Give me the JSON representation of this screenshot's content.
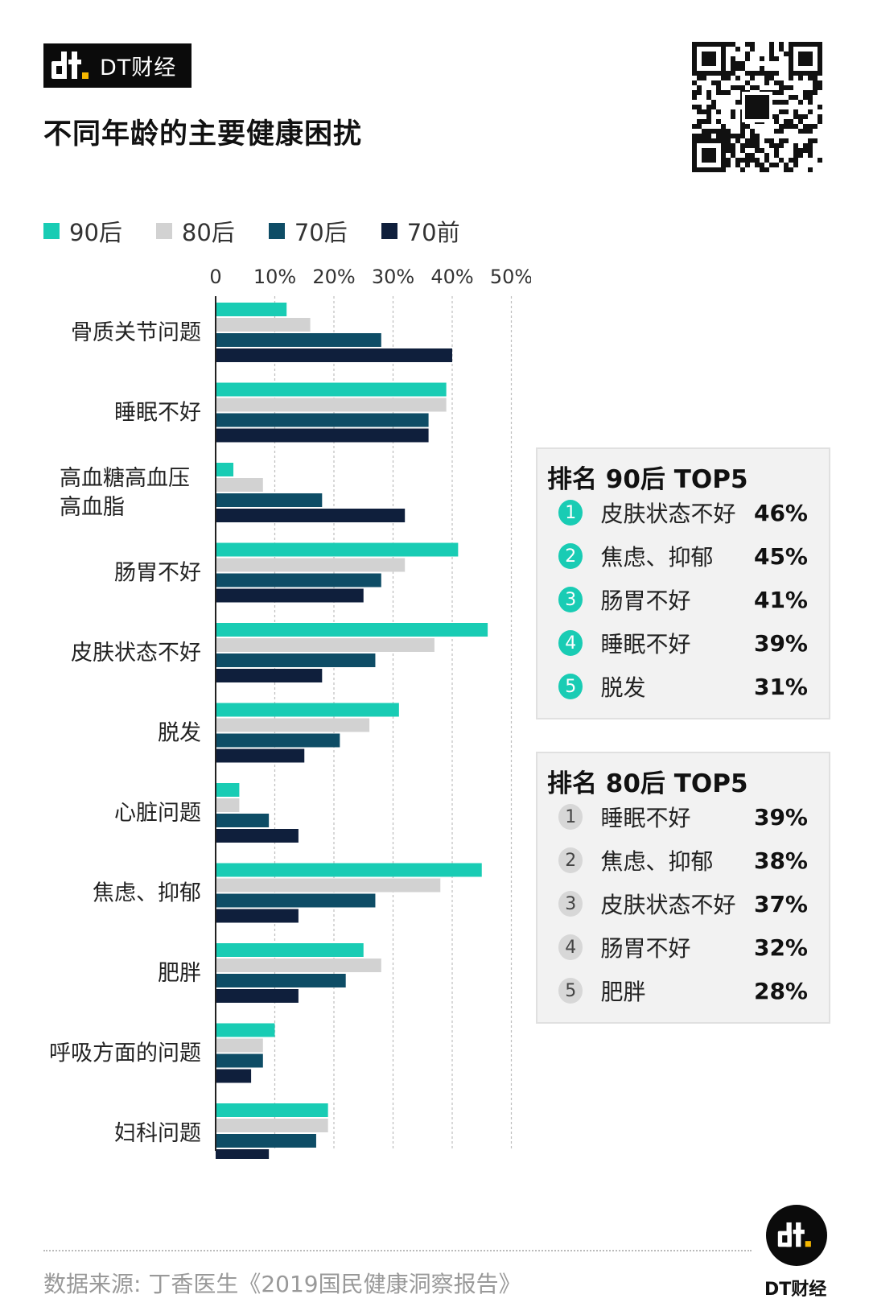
{
  "brand": {
    "name": "DT财经",
    "logo_mark": "dt-logo-icon"
  },
  "title": "不同年龄的主要健康困扰",
  "colors": {
    "90后": "#19ccb4",
    "80后": "#d2d2d2",
    "70后": "#0e4d66",
    "70前": "#0f1f3c",
    "grid": "#bdbdbd"
  },
  "legend": [
    {
      "label": "90后",
      "color": "#19ccb4"
    },
    {
      "label": "80后",
      "color": "#d2d2d2"
    },
    {
      "label": "70后",
      "color": "#0e4d66"
    },
    {
      "label": "70前",
      "color": "#0f1f3c"
    }
  ],
  "chart_data": {
    "type": "bar",
    "orientation": "horizontal",
    "categories": [
      "骨质关节问题",
      "睡眠不好",
      "高血糖高血压\n高血脂",
      "肠胃不好",
      "皮肤状态不好",
      "脱发",
      "心脏问题",
      "焦虑、抑郁",
      "肥胖",
      "呼吸方面的问题",
      "妇科问题"
    ],
    "series": [
      {
        "name": "90后",
        "values": [
          12,
          39,
          3,
          41,
          46,
          31,
          4,
          45,
          25,
          10,
          19
        ]
      },
      {
        "name": "80后",
        "values": [
          16,
          39,
          8,
          32,
          37,
          26,
          4,
          38,
          28,
          8,
          19
        ]
      },
      {
        "name": "70后",
        "values": [
          28,
          36,
          18,
          28,
          27,
          21,
          9,
          27,
          22,
          8,
          17
        ]
      },
      {
        "name": "70前",
        "values": [
          40,
          36,
          32,
          25,
          18,
          15,
          14,
          14,
          14,
          6,
          9
        ]
      }
    ],
    "x_ticks": [
      "0",
      "10%",
      "20%",
      "30%",
      "40%",
      "50%"
    ],
    "xlim": [
      0,
      50
    ],
    "grid": true,
    "legend_position": "top-left"
  },
  "ranking_90": {
    "title": "排名 90后 TOP5",
    "items": [
      {
        "rank": "1",
        "label": "皮肤状态不好",
        "pct": "46%"
      },
      {
        "rank": "2",
        "label": "焦虑、抑郁",
        "pct": "45%"
      },
      {
        "rank": "3",
        "label": "肠胃不好",
        "pct": "41%"
      },
      {
        "rank": "4",
        "label": "睡眠不好",
        "pct": "39%"
      },
      {
        "rank": "5",
        "label": "脱发",
        "pct": "31%"
      }
    ]
  },
  "ranking_80": {
    "title": "排名 80后 TOP5",
    "items": [
      {
        "rank": "1",
        "label": "睡眠不好",
        "pct": "39%"
      },
      {
        "rank": "2",
        "label": "焦虑、抑郁",
        "pct": "38%"
      },
      {
        "rank": "3",
        "label": "皮肤状态不好",
        "pct": "37%"
      },
      {
        "rank": "4",
        "label": "肠胃不好",
        "pct": "32%"
      },
      {
        "rank": "5",
        "label": "肥胖",
        "pct": "28%"
      }
    ]
  },
  "source": "数据来源: 丁香医生《2019国民健康洞察报告》",
  "footer_brand": "DT财经"
}
